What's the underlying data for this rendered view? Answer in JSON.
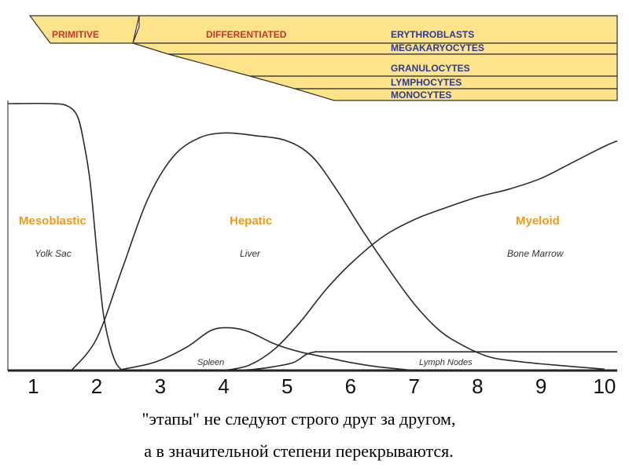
{
  "lineage_band": {
    "fill_color": "#fde38a",
    "labels": {
      "primitive": "PRIMITIVE",
      "differentiated": "DIFFERENTIATED",
      "erythroblasts": "ERYTHROBLASTS",
      "megakaryocytes": "MEGAKARYOCYTES",
      "granulocytes": "GRANULOCYTES",
      "lymphocytes": "LYMPHOCYTES",
      "monocytes": "MONOCYTES"
    }
  },
  "chart_data": {
    "type": "line",
    "x_ticks": [
      "1",
      "2",
      "3",
      "4",
      "5",
      "6",
      "7",
      "8",
      "9",
      "10"
    ],
    "xlim": [
      0.6,
      10.2
    ],
    "ylim": [
      0,
      100
    ],
    "stages": [
      {
        "name": "Mesoblastic",
        "site": "Yolk Sac"
      },
      {
        "name": "Hepatic",
        "site": "Liver"
      },
      {
        "name": "Myeloid",
        "site": "Bone Marrow"
      }
    ],
    "series": [
      {
        "name": "Yolk Sac",
        "points": [
          [
            0.6,
            100
          ],
          [
            1.3,
            100
          ],
          [
            1.55,
            99
          ],
          [
            1.7,
            95
          ],
          [
            1.8,
            85
          ],
          [
            1.9,
            70
          ],
          [
            2.0,
            45
          ],
          [
            2.1,
            22
          ],
          [
            2.2,
            10
          ],
          [
            2.3,
            3
          ],
          [
            2.4,
            0
          ]
        ]
      },
      {
        "name": "Liver",
        "points": [
          [
            1.6,
            0
          ],
          [
            2.0,
            12
          ],
          [
            2.4,
            38
          ],
          [
            2.8,
            64
          ],
          [
            3.2,
            80
          ],
          [
            3.6,
            87
          ],
          [
            4.0,
            89
          ],
          [
            4.5,
            88
          ],
          [
            5.0,
            86
          ],
          [
            5.4,
            80
          ],
          [
            5.8,
            67
          ],
          [
            6.2,
            52
          ],
          [
            6.6,
            38
          ],
          [
            7.0,
            25
          ],
          [
            7.4,
            15
          ],
          [
            7.8,
            9
          ],
          [
            8.2,
            5
          ],
          [
            8.6,
            3.5
          ],
          [
            9.0,
            2.5
          ],
          [
            9.5,
            1.5
          ],
          [
            10.0,
            0.5
          ]
        ]
      },
      {
        "name": "Spleen",
        "points": [
          [
            2.3,
            0
          ],
          [
            2.9,
            3
          ],
          [
            3.4,
            8.5
          ],
          [
            3.8,
            15
          ],
          [
            4.1,
            16
          ],
          [
            4.4,
            14.5
          ],
          [
            4.8,
            10
          ],
          [
            5.2,
            7
          ],
          [
            5.6,
            5
          ],
          [
            6.0,
            3
          ],
          [
            6.4,
            1.5
          ],
          [
            6.8,
            0.5
          ],
          [
            7.0,
            0
          ]
        ]
      },
      {
        "name": "Bone Marrow",
        "points": [
          [
            4.0,
            0
          ],
          [
            4.4,
            2
          ],
          [
            4.8,
            8
          ],
          [
            5.2,
            18
          ],
          [
            5.6,
            30
          ],
          [
            6.0,
            40
          ],
          [
            6.5,
            50
          ],
          [
            7.0,
            56.5
          ],
          [
            7.5,
            61
          ],
          [
            8.0,
            65
          ],
          [
            8.5,
            68
          ],
          [
            9.0,
            72
          ],
          [
            9.5,
            78
          ],
          [
            10.0,
            84
          ],
          [
            10.2,
            86
          ]
        ]
      },
      {
        "name": "Lymph Nodes",
        "points": [
          [
            4.2,
            0
          ],
          [
            4.5,
            0.5
          ],
          [
            4.8,
            1.5
          ],
          [
            5.1,
            3
          ],
          [
            5.3,
            6
          ],
          [
            5.45,
            7
          ],
          [
            5.6,
            7
          ],
          [
            7.0,
            7
          ],
          [
            8.5,
            7
          ],
          [
            10.2,
            7
          ]
        ]
      }
    ],
    "title": "",
    "xlabel": "",
    "ylabel": "",
    "grid": false
  },
  "caption": {
    "line1": "\"этапы\" не следуют строго друг за другом,",
    "line2": "а в значительной степени перекрываются."
  }
}
